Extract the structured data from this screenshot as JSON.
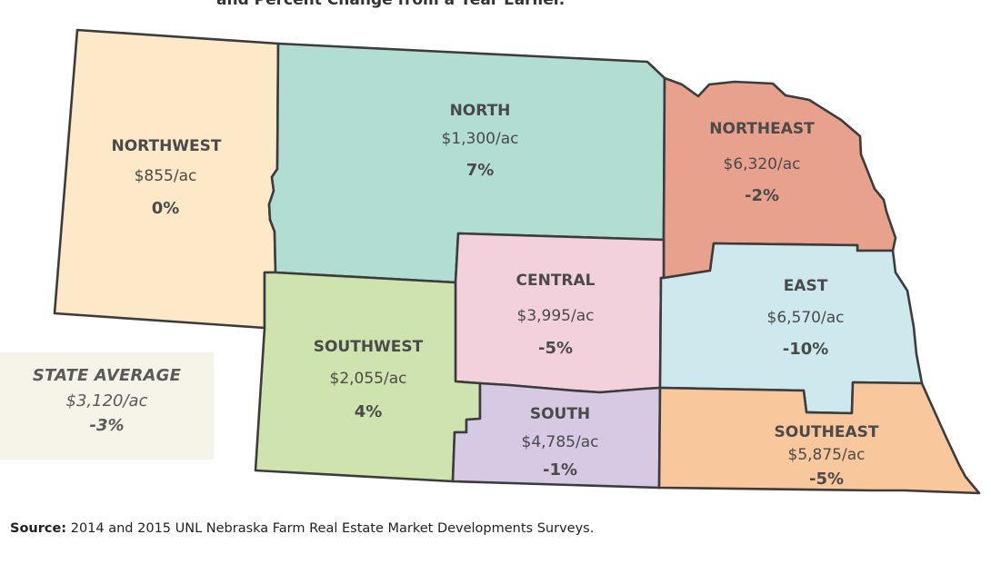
{
  "title_fragment": "and Percent Change from a Year Earlier.",
  "regions": {
    "northwest": {
      "name": "NORTHWEST",
      "value": "$855/ac",
      "change": "0%",
      "color": "#fde9c8"
    },
    "north": {
      "name": "NORTH",
      "value": "$1,300/ac",
      "change": "7%",
      "color": "#b2ddd3"
    },
    "northeast": {
      "name": "NORTHEAST",
      "value": "$6,320/ac",
      "change": "-2%",
      "color": "#e8a18d"
    },
    "central": {
      "name": "CENTRAL",
      "value": "$3,995/ac",
      "change": "-5%",
      "color": "#f3d1dc"
    },
    "east": {
      "name": "EAST",
      "value": "$6,570/ac",
      "change": "-10%",
      "color": "#cde9ee"
    },
    "southwest": {
      "name": "SOUTHWEST",
      "value": "$2,055/ac",
      "change": "4%",
      "color": "#cfe3ae"
    },
    "south": {
      "name": "SOUTH",
      "value": "$4,785/ac",
      "change": "-1%",
      "color": "#d6c9e3"
    },
    "southeast": {
      "name": "SOUTHEAST",
      "value": "$5,875/ac",
      "change": "-5%",
      "color": "#f9c79c"
    }
  },
  "state_average": {
    "label": "STATE AVERAGE",
    "value": "$3,120/ac",
    "change": "-3%",
    "color": "#f6f3e8"
  },
  "source": {
    "key": "Source:",
    "text": " 2014 and 2015 UNL Nebraska Farm Real Estate Market Developments Surveys."
  }
}
